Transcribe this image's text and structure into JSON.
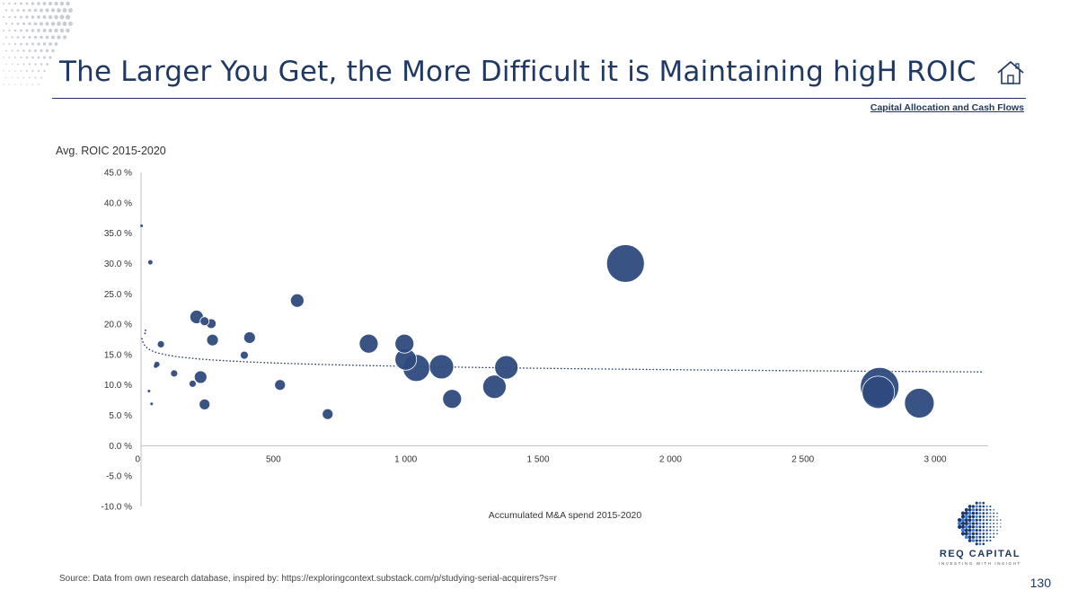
{
  "slide": {
    "title": "The Larger You Get, the More Difficult it is Maintaining higH ROIC",
    "section_link": "Capital Allocation and Cash Flows",
    "source": "Source: Data from own research database, inspired by: https://exploringcontext.substack.com/p/studying-serial-acquirers?s=r",
    "page_number": "130",
    "logo": {
      "name": "REQ CAPITAL",
      "tagline": "INVESTING WITH INSIGHT"
    },
    "icons": {
      "home": "home-icon",
      "corner": "dot-pattern-icon"
    },
    "colors": {
      "accent": "#1f3864",
      "bubble": "#2e4a7d",
      "trend": "#1f3864"
    }
  },
  "chart_data": {
    "type": "scatter",
    "title": "",
    "ylabel": "Avg. ROIC 2015-2020",
    "xlabel": "Accumulated M&A spend 2015-2020",
    "xlim": [
      0,
      3200
    ],
    "ylim": [
      -10,
      45
    ],
    "x_ticks": [
      0,
      500,
      1000,
      1500,
      2000,
      2500,
      3000
    ],
    "x_tick_labels": [
      "0",
      "500",
      "1 000",
      "1 500",
      "2 000",
      "2 500",
      "3 000"
    ],
    "y_ticks": [
      -10,
      -5,
      0,
      5,
      10,
      15,
      20,
      25,
      30,
      35,
      40,
      45
    ],
    "y_tick_labels": [
      "-10.0 %",
      "-5.0 %",
      "0.0 %",
      "5.0 %",
      "10.0 %",
      "15.0 %",
      "20.0 %",
      "25.0 %",
      "30.0 %",
      "35.0 %",
      "40.0 %",
      "45.0 %"
    ],
    "grid": false,
    "legend": "none",
    "trendline": "logarithmic (dotted)",
    "points": [
      {
        "x": 2,
        "y": 36.2,
        "size": 3
      },
      {
        "x": 17,
        "y": 19.0,
        "size": 2
      },
      {
        "x": 35,
        "y": 30.2,
        "size": 5
      },
      {
        "x": 60,
        "y": 13.4,
        "size": 6
      },
      {
        "x": 75,
        "y": 16.7,
        "size": 8
      },
      {
        "x": 55,
        "y": 13.1,
        "size": 4
      },
      {
        "x": 30,
        "y": 9.0,
        "size": 3
      },
      {
        "x": 40,
        "y": 6.9,
        "size": 3
      },
      {
        "x": 15,
        "y": 18.5,
        "size": 2
      },
      {
        "x": 125,
        "y": 11.9,
        "size": 8
      },
      {
        "x": 195,
        "y": 10.2,
        "size": 8
      },
      {
        "x": 210,
        "y": 21.2,
        "size": 15
      },
      {
        "x": 225,
        "y": 11.3,
        "size": 14
      },
      {
        "x": 240,
        "y": 20.5,
        "size": 10
      },
      {
        "x": 240,
        "y": 6.8,
        "size": 12
      },
      {
        "x": 265,
        "y": 20.1,
        "size": 11
      },
      {
        "x": 270,
        "y": 17.4,
        "size": 13
      },
      {
        "x": 390,
        "y": 14.9,
        "size": 9
      },
      {
        "x": 410,
        "y": 17.8,
        "size": 13
      },
      {
        "x": 525,
        "y": 10.0,
        "size": 12
      },
      {
        "x": 590,
        "y": 23.9,
        "size": 15
      },
      {
        "x": 705,
        "y": 5.2,
        "size": 12
      },
      {
        "x": 860,
        "y": 16.8,
        "size": 21
      },
      {
        "x": 995,
        "y": 16.8,
        "size": 21
      },
      {
        "x": 1000,
        "y": 14.2,
        "size": 24
      },
      {
        "x": 1040,
        "y": 12.8,
        "size": 30
      },
      {
        "x": 1135,
        "y": 13.0,
        "size": 27
      },
      {
        "x": 1175,
        "y": 7.7,
        "size": 21
      },
      {
        "x": 1335,
        "y": 9.7,
        "size": 26
      },
      {
        "x": 1380,
        "y": 12.9,
        "size": 26
      },
      {
        "x": 1830,
        "y": 30.0,
        "size": 42
      },
      {
        "x": 2790,
        "y": 9.7,
        "size": 43
      },
      {
        "x": 2785,
        "y": 8.8,
        "size": 36
      },
      {
        "x": 2940,
        "y": 7.0,
        "size": 33
      }
    ]
  }
}
